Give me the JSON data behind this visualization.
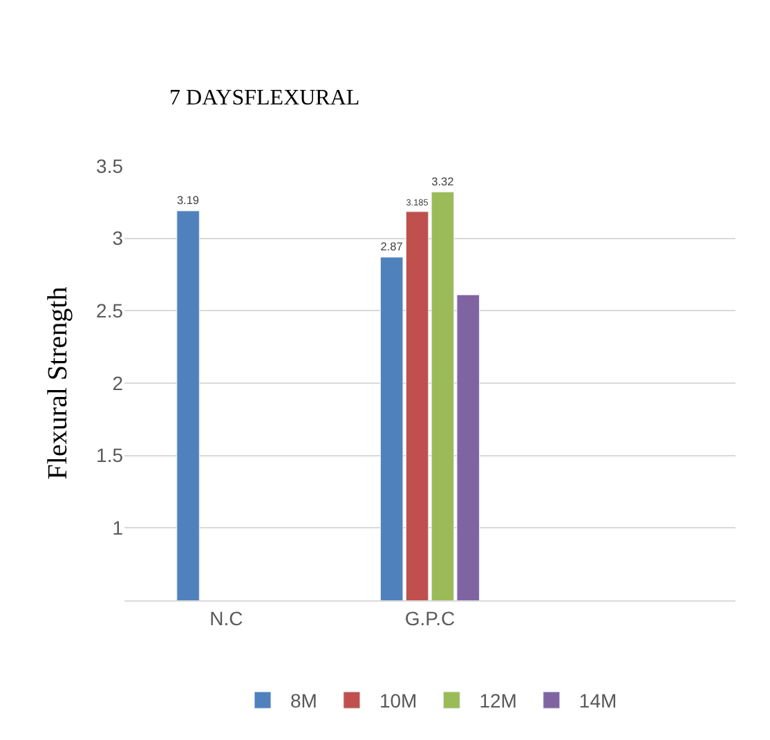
{
  "chart_data": {
    "type": "bar",
    "title": "7 DAYSFLEXURAL",
    "ylabel": "Flexural Strength",
    "categories": [
      "N.C",
      "G.P.C",
      null
    ],
    "series": [
      {
        "name": "8M",
        "color": "#4f81bd",
        "values": [
          3.19,
          2.87,
          null
        ],
        "value_labels": [
          "3.19",
          "2.87",
          null
        ]
      },
      {
        "name": "10M",
        "color": "#c0504d",
        "values": [
          null,
          3.185,
          null
        ],
        "value_labels": [
          null,
          "3.185",
          null
        ]
      },
      {
        "name": "12M",
        "color": "#9bbb59",
        "values": [
          null,
          3.32,
          null
        ],
        "value_labels": [
          null,
          "3.32",
          null
        ]
      },
      {
        "name": "14M",
        "color": "#8064a2",
        "values": [
          null,
          2.61,
          null
        ],
        "value_labels": [
          null,
          null,
          null
        ]
      }
    ],
    "ylim": [
      0.5,
      3.5
    ],
    "yticks": [
      1,
      1.5,
      2,
      2.5,
      3,
      3.5
    ],
    "grid": "y",
    "legend": "bottom"
  }
}
